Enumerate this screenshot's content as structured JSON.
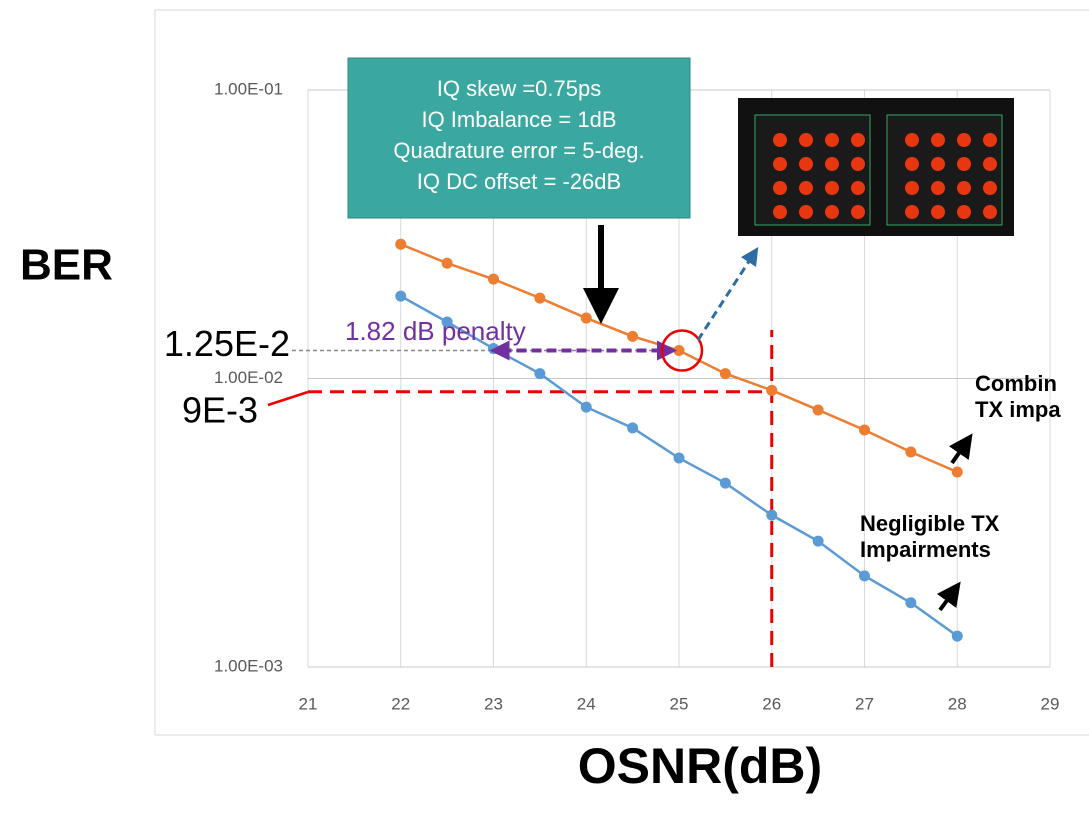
{
  "chart_data": {
    "type": "line",
    "y_label": "BER",
    "x_label": "OSNR(dB)",
    "x": [
      22,
      22.5,
      23,
      23.5,
      24,
      24.5,
      25,
      25.5,
      26,
      26.5,
      27,
      27.5,
      28
    ],
    "series": [
      {
        "label_lines": [
          "Combin",
          "TX impa"
        ],
        "color": "#ed7d31",
        "values": [
          0.0292,
          0.0251,
          0.0221,
          0.019,
          0.0162,
          0.014,
          0.0125,
          0.0104,
          0.0091,
          0.00778,
          0.00663,
          0.00556,
          0.00474
        ]
      },
      {
        "label_lines": [
          "Negligible TX",
          "Impairments"
        ],
        "color": "#5b9bd5",
        "values": [
          0.0193,
          0.0157,
          0.0127,
          0.0104,
          0.00796,
          0.00674,
          0.0053,
          0.00434,
          0.00336,
          0.00273,
          0.00207,
          0.00167,
          0.00128
        ]
      }
    ],
    "xlim": [
      21,
      29
    ],
    "xticks": [
      21,
      22,
      23,
      24,
      25,
      26,
      27,
      28,
      29
    ],
    "ylim": [
      0.001,
      0.1
    ],
    "log_y": true,
    "grid": true,
    "yticks": [
      {
        "value": 0.001,
        "label": "1.00E-03"
      },
      {
        "value": 0.01,
        "label": "1.00E-02"
      },
      {
        "value": 0.1,
        "label": "1.00E-01"
      }
    ],
    "threshold": {
      "value": 0.009,
      "label": "9E-3",
      "x": 26
    },
    "penalty_level": {
      "value": 0.0125,
      "label": "1.25E-2",
      "x": [
        23,
        25
      ],
      "text": "1.82 dB penalty"
    },
    "box_lines": [
      "IQ skew =0.75ps",
      "IQ Imbalance = 1dB",
      "Quadrature error = 5-deg.",
      "IQ DC offset = -26dB"
    ]
  }
}
